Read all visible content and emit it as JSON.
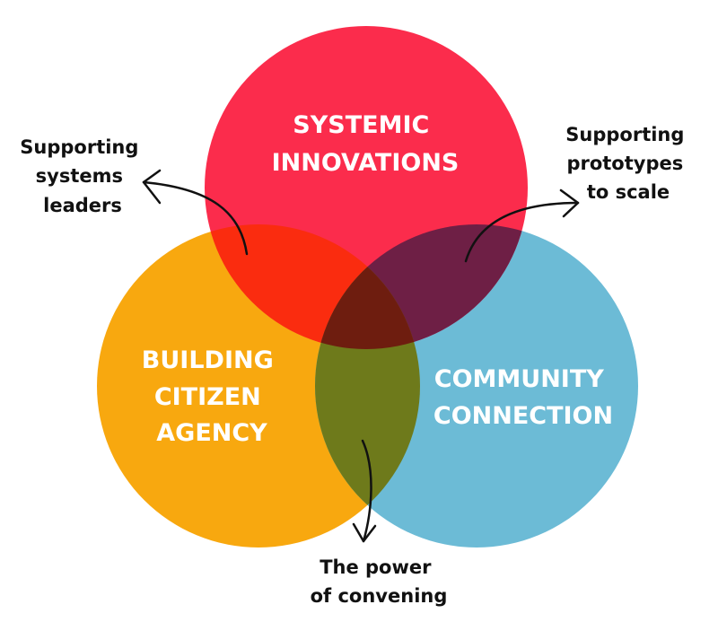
{
  "colors": {
    "systemic": "#fb2c4c",
    "citizen": "#f8a80f",
    "community": "#6cbbd6",
    "systemic_citizen": "#fa2c0f",
    "systemic_community": "#6e1f45",
    "citizen_community": "#6e7a1b",
    "center": "#6e1d0f"
  },
  "circles": {
    "systemic": [
      "SYSTEMIC",
      "INNOVATIONS"
    ],
    "citizen": [
      "BUILDING",
      "CITIZEN",
      "AGENCY"
    ],
    "community": [
      "COMMUNITY",
      "CONNECTION"
    ]
  },
  "callouts": {
    "systems_leaders": [
      "Supporting",
      "systems",
      "leaders"
    ],
    "prototypes": [
      "Supporting",
      "prototypes",
      "to scale"
    ],
    "convening": [
      "The power",
      "of convening"
    ]
  }
}
